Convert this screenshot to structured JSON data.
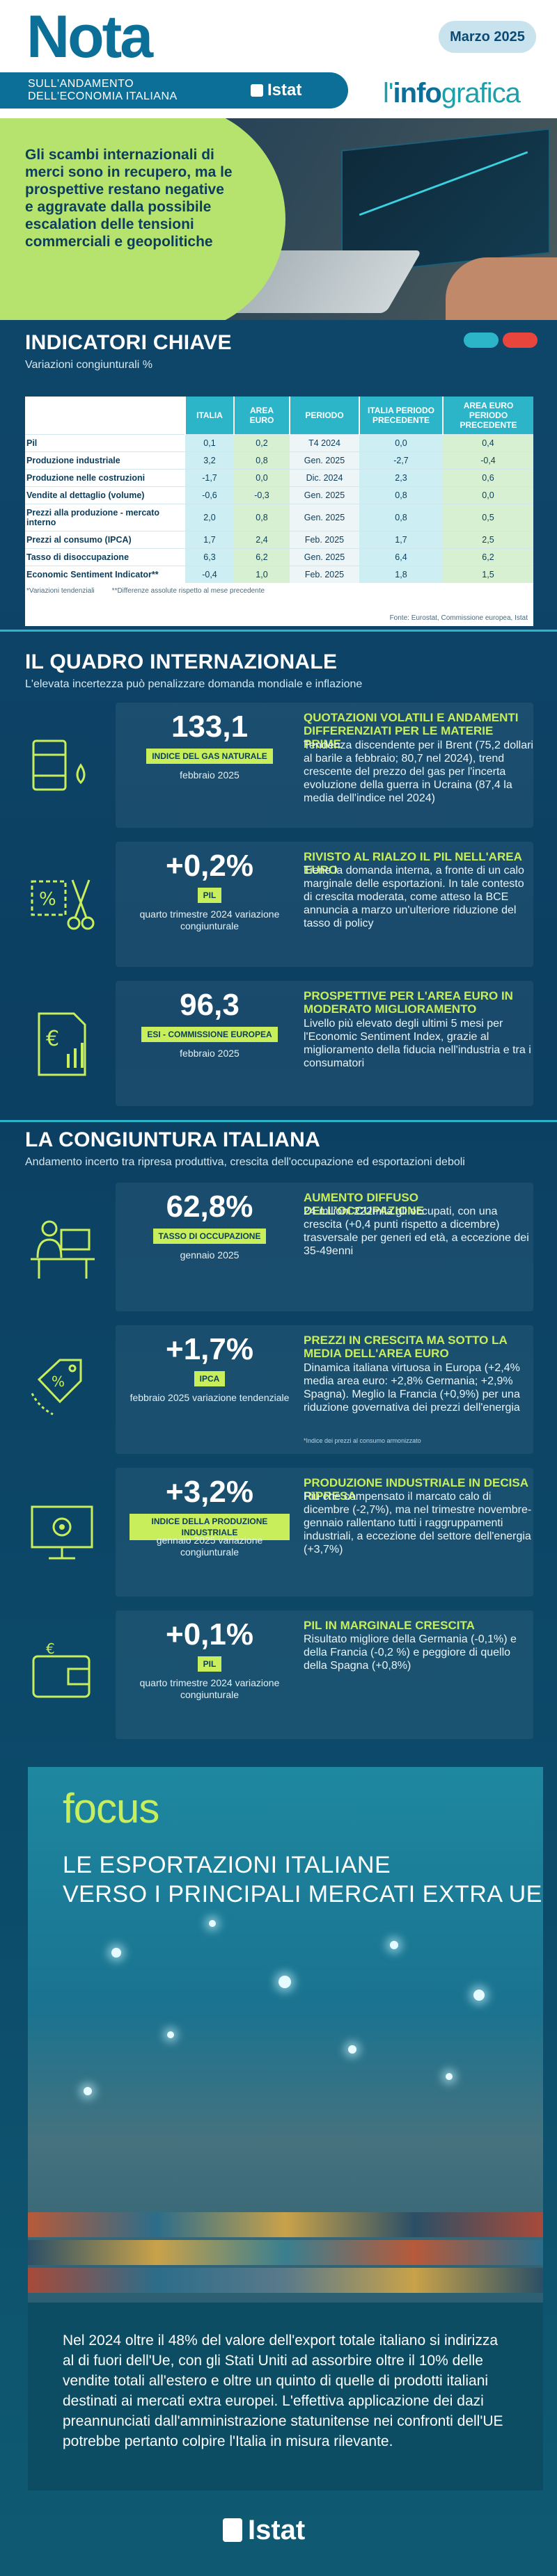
{
  "header": {
    "logo": "Nota",
    "subtitle_line1": "SULL'ANDAMENTO",
    "subtitle_line2": "DELL'ECONOMIA ITALIANA",
    "publisher": "Istat",
    "date": "Marzo 2025",
    "brand_prefix": "l'",
    "brand_bold": "info",
    "brand_suffix": "grafica"
  },
  "hero": {
    "text": "Gli scambi internazionali di merci sono in recupero, ma le prospettive restano negative e aggravate dalla possibile escalation delle tensioni commerciali e geopolitiche"
  },
  "indicators": {
    "title": "INDICATORI CHIAVE",
    "subtitle": "Variazioni congiunturali %",
    "columns": [
      "",
      "ITALIA",
      "AREA EURO",
      "PERIODO",
      "ITALIA PERIODO PRECEDENTE",
      "AREA EURO PERIODO PRECEDENTE"
    ],
    "rows": [
      [
        "Pil",
        "0,1",
        "0,2",
        "T4 2024",
        "0,0",
        "0,4"
      ],
      [
        "Produzione industriale",
        "3,2",
        "0,8",
        "Gen. 2025",
        "-2,7",
        "-0,4"
      ],
      [
        "Produzione nelle costruzioni",
        "-1,7",
        "0,0",
        "Dic. 2024",
        "2,3",
        "0,6"
      ],
      [
        "Vendite al dettaglio (volume)",
        "-0,6",
        "-0,3",
        "Gen. 2025",
        "0,8",
        "0,0"
      ],
      [
        "Prezzi alla produzione - mercato interno",
        "2,0",
        "0,8",
        "Gen. 2025",
        "0,8",
        "0,5"
      ],
      [
        "Prezzi al consumo (IPCA)",
        "1,7",
        "2,4",
        "Feb. 2025",
        "1,7",
        "2,5"
      ],
      [
        "Tasso di disoccupazione",
        "6,3",
        "6,2",
        "Gen. 2025",
        "6,4",
        "6,2"
      ],
      [
        "Economic Sentiment Indicator**",
        "-0,4",
        "1,0",
        "Feb. 2025",
        "1,8",
        "1,5"
      ]
    ],
    "note1": "*Variazioni tendenziali",
    "note2": "**Differenze assolute rispetto al mese precedente",
    "source": "Fonte: Eurostat, Commissione europea, Istat"
  },
  "international": {
    "title": "IL QUADRO INTERNAZIONALE",
    "subtitle": "L'elevata incertezza può penalizzare domanda mondiale e inflazione",
    "cards": [
      {
        "icon": "oil-barrel-icon",
        "value": "133,1",
        "badge": "INDICE DEL GAS NATURALE",
        "period": "febbraio 2025",
        "head": "QUOTAZIONI VOLATILI E ANDAMENTI DIFFERENZIATI PER LE MATERIE PRIME",
        "body": "Tendenza discendente per il Brent (75,2 dollari al barile a febbraio; 80,7 nel 2024), trend crescente del prezzo del gas per l'incerta evoluzione della guerra in Ucraina (87,4 la media dell'indice nel 2024)"
      },
      {
        "icon": "scissors-percent-icon",
        "value": "+0,2%",
        "badge": "PIL",
        "period": "quarto trimestre 2024 variazione congiunturale",
        "head": "RIVISTO AL RIALZO IL PIL NELL'AREA EURO",
        "body": "Tiene la domanda interna, a fronte di un calo marginale delle esportazioni. In tale contesto di crescita moderata, come atteso la BCE annuncia a marzo un'ulteriore riduzione del tasso di policy"
      },
      {
        "icon": "euro-document-icon",
        "value": "96,3",
        "badge": "ESI - COMMISSIONE EUROPEA",
        "period": "febbraio 2025",
        "head": "PROSPETTIVE PER L'AREA EURO IN MODERATO MIGLIORAMENTO",
        "body": "Livello più elevato degli ultimi 5 mesi per l'Economic Sentiment Index, grazie al miglioramento della fiducia nell'industria e tra i consumatori"
      }
    ]
  },
  "italy": {
    "title": "LA CONGIUNTURA ITALIANA",
    "subtitle": "Andamento incerto tra ripresa produttiva, crescita dell'occupazione ed esportazioni deboli",
    "cards": [
      {
        "icon": "office-worker-icon",
        "value": "62,8%",
        "badge": "TASSO DI OCCUPAZIONE",
        "period": "gennaio 2025",
        "head": "AUMENTO DIFFUSO DELL'OCCUPAZIONE",
        "body": "24 milioni 222mila gli occupati, con una crescita (+0,4 punti rispetto a dicembre) trasversale per generi ed età, a eccezione dei 35-49enni",
        "note": ""
      },
      {
        "icon": "price-tag-icon",
        "value": "+1,7%",
        "badge": "IPCA",
        "period": "febbraio 2025 variazione tendenziale",
        "head": "PREZZI IN CRESCITA MA SOTTO LA MEDIA DELL'AREA EURO",
        "body": "Dinamica italiana virtuosa in Europa (+2,4% media area euro: +2,8% Germania; +2,9% Spagna). Meglio la Francia (+0,9%) per una riduzione governativa dei prezzi dell'energia",
        "note": "*Indice dei prezzi al consumo armonizzato"
      },
      {
        "icon": "monitor-gear-icon",
        "value": "+3,2%",
        "badge": "INDICE DELLA PRODUZIONE INDUSTRIALE",
        "period": "gennaio 2025 variazione congiunturale",
        "head": "PRODUZIONE INDUSTRIALE IN DECISA RIPRESA",
        "body": "Più che compensato il marcato calo di dicembre (-2,7%), ma nel trimestre novembre-gennaio rallentano tutti i raggruppamenti industriali, a eccezione del settore dell'energia (+3,7%)",
        "note": ""
      },
      {
        "icon": "wallet-icon",
        "value": "+0,1%",
        "badge": "PIL",
        "period": "quarto trimestre 2024 variazione congiunturale",
        "head": "PIL IN MARGINALE CRESCITA",
        "body": "Risultato migliore della Germania (-0,1%) e della Francia (-0,2 %) e peggiore di quello della Spagna (+0,8%)",
        "note": ""
      }
    ]
  },
  "focus": {
    "word": "focus",
    "title_line1": "LE ESPORTAZIONI ITALIANE",
    "title_line2": "VERSO I PRINCIPALI MERCATI EXTRA UE",
    "text": "Nel 2024 oltre il 48% del valore dell'export totale italiano si indirizza al di fuori dell'Ue, con gli Stati Uniti ad assorbire oltre il 10% delle vendite totali all'estero e oltre un quinto di quelle di prodotti italiani destinati ai mercati extra europei. L'effettiva applicazione dei dazi preannunciati dall'amministrazione statunitense nei confronti dell'UE potrebbe pertanto colpire l'Italia in misura rilevante."
  },
  "footer": {
    "publisher": "Istat"
  },
  "colors": {
    "accent_lime": "#c8ee5c",
    "accent_cyan": "#2cb5c9",
    "navy": "#0c3f62",
    "brand_blue": "#0b6f98"
  }
}
